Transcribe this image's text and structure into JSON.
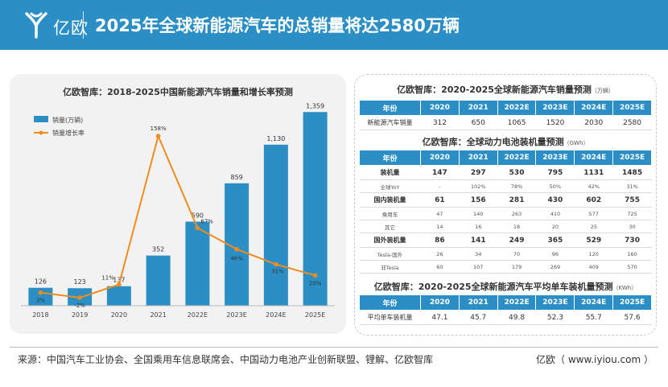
{
  "header": {
    "logo_text": "亿欧",
    "title": "2025年全球新能源汽车的总销量将达2580万辆"
  },
  "chart_data": {
    "type": "bar",
    "title": "亿欧智库：2018-2025中国新能源汽车销量和增长率预测",
    "categories": [
      "2018",
      "2019",
      "2020",
      "2021",
      "2022E",
      "2023E",
      "2024E",
      "2025E"
    ],
    "series": [
      {
        "name": "销量(万辆)",
        "type": "bar",
        "values": [
          126,
          123,
          137,
          352,
          590,
          859,
          1130,
          1359
        ],
        "labels": [
          "126",
          "123",
          "137",
          "352",
          "590",
          "859",
          "1,130",
          "1,359"
        ],
        "color": "#2b8fc6"
      },
      {
        "name": "销量增长率",
        "type": "line",
        "values": [
          3,
          -2,
          11,
          158,
          67,
          46,
          31,
          20
        ],
        "labels": [
          "3%",
          "-2%",
          "11%",
          "158%",
          "67%",
          "46%",
          "31%",
          "20%"
        ],
        "color": "#f08c1e"
      }
    ],
    "ylim": [
      0,
      1400
    ],
    "y2lim": [
      -10,
      170
    ],
    "legend": "top-left",
    "grid": false
  },
  "tables": {
    "t1": {
      "title": "亿欧智库：2020-2025全球新能源汽车销量预测",
      "unit": "（万辆）",
      "header": [
        "年份",
        "2020",
        "2021",
        "2022E",
        "2023E",
        "2024E",
        "2025E"
      ],
      "rows": [
        [
          "新能源汽车销量",
          "312",
          "650",
          "1065",
          "1520",
          "2030",
          "2580"
        ]
      ]
    },
    "t2": {
      "title": "亿欧智库：全球动力电池装机量预测",
      "unit": "（GWh）",
      "header": [
        "年份",
        "2020",
        "2021",
        "2022E",
        "2023E",
        "2024E",
        "2025E"
      ],
      "rows": [
        [
          "装机量",
          "147",
          "297",
          "530",
          "795",
          "1131",
          "1485"
        ],
        [
          "全球YoY",
          "-",
          "102%",
          "78%",
          "50%",
          "42%",
          "31%"
        ],
        [
          "国内装机量",
          "61",
          "156",
          "281",
          "430",
          "602",
          "755"
        ],
        [
          "乘用车",
          "47",
          "140",
          "263",
          "410",
          "577",
          "725"
        ],
        [
          "其它",
          "14",
          "16",
          "18",
          "20",
          "25",
          "30"
        ],
        [
          "国外装机量",
          "86",
          "141",
          "249",
          "365",
          "529",
          "730"
        ],
        [
          "Tesla-国外",
          "26",
          "34",
          "70",
          "96",
          "120",
          "160"
        ],
        [
          "非Tesla",
          "60",
          "107",
          "179",
          "269",
          "409",
          "570"
        ]
      ]
    },
    "t3": {
      "title": "亿欧智库：2020-2025全球新能源汽车平均单车装机量预测",
      "unit": "（KWh）",
      "header": [
        "年份",
        "2020",
        "2021",
        "2022E",
        "2023E",
        "2024E",
        "2025E"
      ],
      "rows": [
        [
          "平均单车装机量",
          "47.1",
          "45.7",
          "49.8",
          "52.3",
          "55.7",
          "57.6"
        ]
      ]
    }
  },
  "footer": {
    "source": "来源：中国汽车工业协会、全国乘用车信息联席会、中国动力电池产业创新联盟、锂解、亿欧智库",
    "brand": "亿欧（ www.iyiou.com ）"
  }
}
